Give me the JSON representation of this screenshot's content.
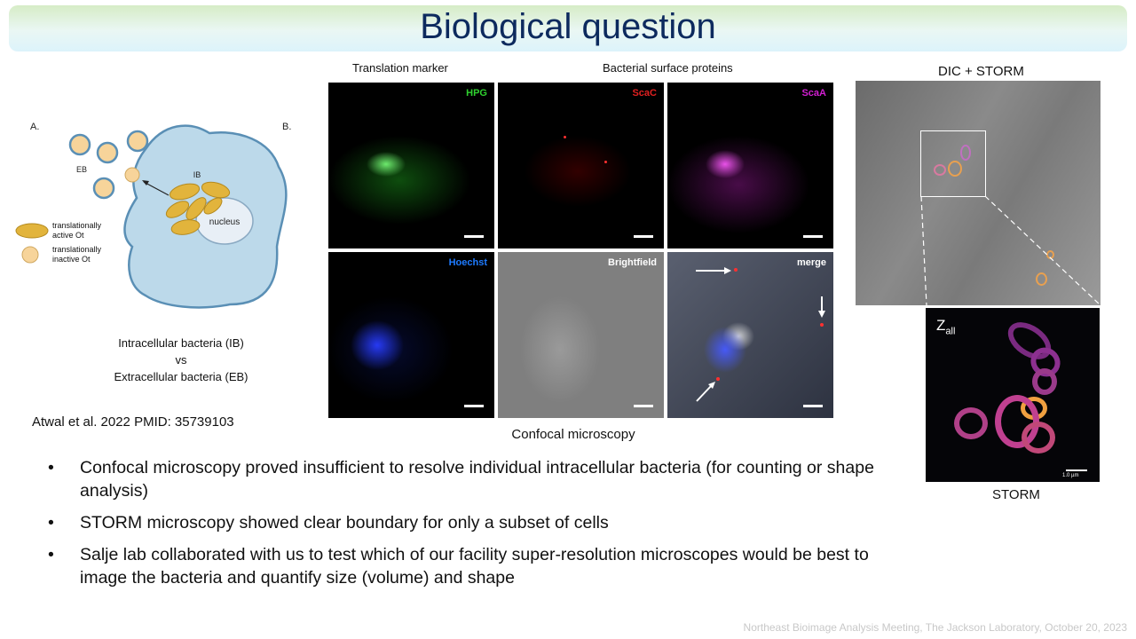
{
  "slide": {
    "title": "Biological question",
    "footer": "Northeast Bioimage Analysis Meeting, The Jackson Laboratory, October 20, 2023"
  },
  "diagram": {
    "label_a": "A.",
    "label_b": "B.",
    "label_eb": "EB",
    "label_ib": "IB",
    "label_nucleus": "nucleus",
    "legend_active": "translationally active Ot",
    "legend_inactive": "translationally inactive Ot",
    "caption_line1": "Intracellular bacteria (IB)",
    "caption_line2": "vs",
    "caption_line3": "Extracellular bacteria (EB)",
    "colors": {
      "cell": "#bcd9ea",
      "cell_border": "#5a8fb5",
      "active": "#e2b43c",
      "inactive": "#f7d49a"
    }
  },
  "citation": "Atwal et al. 2022 PMID: 35739103",
  "confocal": {
    "header_left": "Translation marker",
    "header_right": "Bacterial surface proteins",
    "caption": "Confocal microscopy",
    "panels": [
      {
        "label": "HPG",
        "color": "#2fd12f"
      },
      {
        "label": "ScaC",
        "color": "#e02020"
      },
      {
        "label": "ScaA",
        "color": "#d21fd2"
      },
      {
        "label": "Hoechst",
        "color": "#1e7bff"
      },
      {
        "label": "Brightfield",
        "color": "#ffffff"
      },
      {
        "label": "merge",
        "color": "#ffffff"
      }
    ]
  },
  "storm": {
    "top_label": "DIC + STORM",
    "inset_label_main": "Z",
    "inset_label_sub": "all",
    "scale_label": "1.0 µm",
    "bottom_label": "STORM"
  },
  "bullets": [
    "Confocal microscopy proved insufficient to resolve individual intracellular bacteria (for counting or shape analysis)",
    "STORM microscopy showed clear boundary for only a subset of cells",
    "Salje lab collaborated with us to test which of our facility super-resolution microscopes would be best to image the bacteria and quantify size (volume) and shape"
  ],
  "bullet_symbol": "•"
}
